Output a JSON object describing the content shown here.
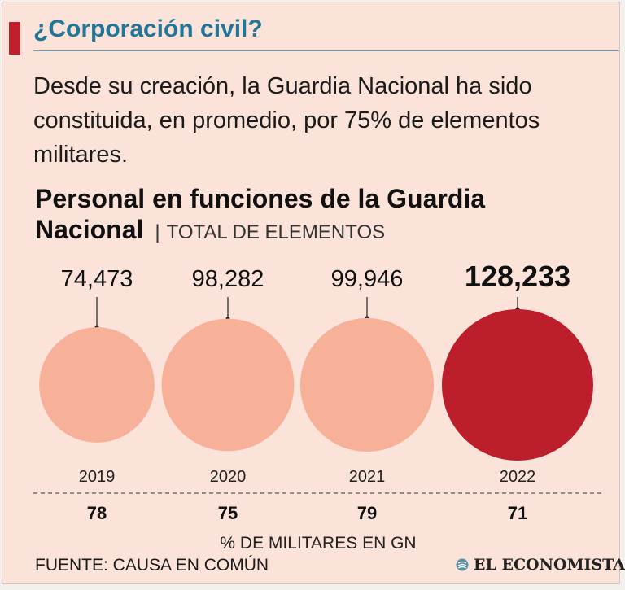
{
  "header": {
    "title": "¿Corporación civil?",
    "intro": "Desde su creación, la Guardia Nacional ha sido constituida, en promedio, por 75% de elementos militares."
  },
  "chart_data": {
    "type": "bubble",
    "title": "Personal en funciones de la Guardia Nacional",
    "subtitle": "TOTAL DE ELEMENTOS",
    "categories": [
      "2019",
      "2020",
      "2021",
      "2022"
    ],
    "values": [
      74473,
      98282,
      99946,
      128233
    ],
    "value_labels": [
      "74,473",
      "98,282",
      "99,946",
      "128,233"
    ],
    "secondary_values": [
      78,
      75,
      79,
      71
    ],
    "secondary_label": "% DE MILITARES EN GN",
    "highlight_index": 3,
    "colors": {
      "bubble": "#f8b199",
      "highlight": "#bd1e2b"
    }
  },
  "footer": {
    "source": "FUENTE: CAUSA EN COMÚN",
    "brand": "EL ECONOMISTA"
  }
}
